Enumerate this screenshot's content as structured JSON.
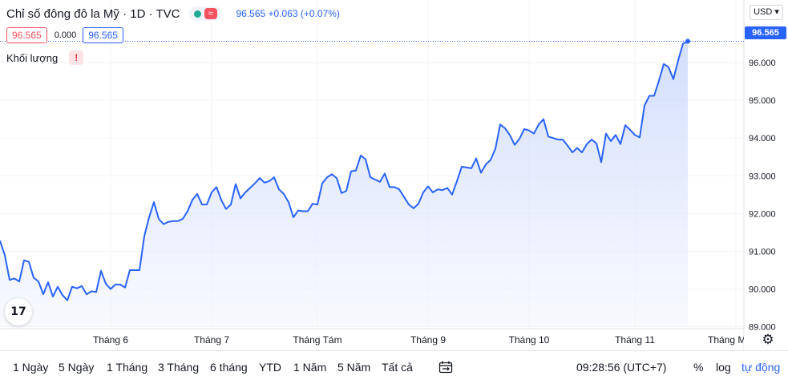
{
  "header": {
    "title": "Chỉ số đông đô la Mỹ · 1D · TVC",
    "status_icon_symbol": "≈",
    "price_change": "96.565 +0.063 (+0.07%)"
  },
  "quote": {
    "bid": "96.565",
    "spread": "0.000",
    "ask": "96.565"
  },
  "volume": {
    "label": "Khối lượng",
    "warning_symbol": "!"
  },
  "currency": {
    "label": "USD ▾"
  },
  "last_price_tag": "96.565",
  "colors": {
    "line": "#2962ff",
    "area_top": "#c4d3fb",
    "area_bottom": "#f3f6fe",
    "grid": "#f0f3fa",
    "badge_red": "#f7525f",
    "status_green": "#22ab94"
  },
  "chart_data": {
    "type": "area",
    "xlabel": "",
    "ylabel": "",
    "ylim": [
      89.0,
      96.8
    ],
    "yticks": [
      89.0,
      90.0,
      91.0,
      92.0,
      93.0,
      94.0,
      95.0,
      96.0
    ],
    "ytick_labels": [
      "89.000",
      "90.000",
      "91.000",
      "92.000",
      "93.000",
      "94.000",
      "95.000",
      "96.000"
    ],
    "x_month_ticks": [
      {
        "label": "Tháng 6",
        "index": 23
      },
      {
        "label": "Tháng 7",
        "index": 44
      },
      {
        "label": "Tháng Tám",
        "index": 66
      },
      {
        "label": "Tháng 9",
        "index": 89
      },
      {
        "label": "Tháng 10",
        "index": 110
      },
      {
        "label": "Tháng 11",
        "index": 132
      },
      {
        "label": "Tháng Mười Hai",
        "index": 153
      }
    ],
    "series": [
      {
        "values": [
          91.28,
          90.9,
          90.24,
          90.28,
          90.2,
          90.76,
          90.72,
          90.3,
          90.2,
          89.86,
          90.18,
          89.8,
          90.06,
          89.84,
          89.7,
          90.06,
          90.02,
          90.08,
          89.86,
          89.94,
          89.92,
          90.48,
          90.14,
          90.0,
          90.12,
          90.12,
          90.04,
          90.5,
          90.5,
          90.5,
          91.4,
          91.9,
          92.3,
          91.86,
          91.72,
          91.78,
          91.8,
          91.8,
          91.86,
          92.06,
          92.36,
          92.52,
          92.24,
          92.24,
          92.56,
          92.7,
          92.36,
          92.12,
          92.24,
          92.78,
          92.4,
          92.56,
          92.68,
          92.8,
          92.94,
          92.82,
          92.86,
          92.96,
          92.64,
          92.52,
          92.3,
          91.9,
          92.08,
          92.06,
          92.06,
          92.26,
          92.24,
          92.8,
          92.96,
          93.04,
          92.94,
          92.54,
          92.6,
          93.12,
          93.14,
          93.54,
          93.44,
          92.96,
          92.9,
          92.84,
          93.06,
          92.7,
          92.7,
          92.64,
          92.44,
          92.24,
          92.14,
          92.26,
          92.56,
          92.72,
          92.56,
          92.64,
          92.62,
          92.68,
          92.5,
          92.86,
          93.24,
          93.22,
          93.2,
          93.46,
          93.08,
          93.3,
          93.42,
          93.72,
          94.36,
          94.26,
          94.08,
          93.82,
          93.98,
          94.24,
          94.2,
          94.12,
          94.36,
          94.5,
          94.04,
          94.0,
          93.96,
          93.96,
          93.8,
          93.62,
          93.74,
          93.62,
          93.84,
          93.96,
          93.86,
          93.36,
          94.12,
          93.92,
          94.08,
          93.84,
          94.34,
          94.22,
          94.08,
          94.02,
          94.86,
          95.12,
          95.12,
          95.52,
          95.96,
          95.88,
          95.56,
          96.06,
          96.5,
          96.565
        ]
      }
    ]
  },
  "timeframes": [
    "1 Ngày",
    "5 Ngày",
    "1 Tháng",
    "3 Tháng",
    "6 tháng",
    "YTD",
    "1 Năm",
    "5 Năm",
    "Tất cả"
  ],
  "bottom": {
    "time": "09:28:56 (UTC+7)",
    "percent": "%",
    "log": "log",
    "auto": "tự động"
  }
}
